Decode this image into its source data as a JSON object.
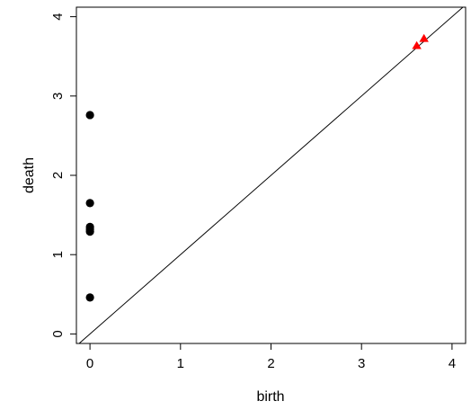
{
  "chart_data": {
    "type": "scatter",
    "xlabel": "birth",
    "ylabel": "death",
    "xlim": [
      -0.15,
      4.15
    ],
    "ylim": [
      -0.12,
      4.12
    ],
    "x_ticks": [
      0,
      1,
      2,
      3,
      4
    ],
    "y_ticks": [
      0,
      1,
      2,
      3,
      4
    ],
    "diagonal": true,
    "series": [
      {
        "marker": "circle",
        "color": "#000000",
        "points": [
          {
            "x": 0,
            "y": 2.76
          },
          {
            "x": 0,
            "y": 1.65
          },
          {
            "x": 0,
            "y": 1.35
          },
          {
            "x": 0,
            "y": 1.32
          },
          {
            "x": 0,
            "y": 1.29
          },
          {
            "x": 0,
            "y": 0.46
          }
        ]
      },
      {
        "marker": "triangle",
        "color": "#ff0000",
        "points": [
          {
            "x": 3.69,
            "y": 3.72
          },
          {
            "x": 3.61,
            "y": 3.63
          }
        ]
      }
    ]
  }
}
